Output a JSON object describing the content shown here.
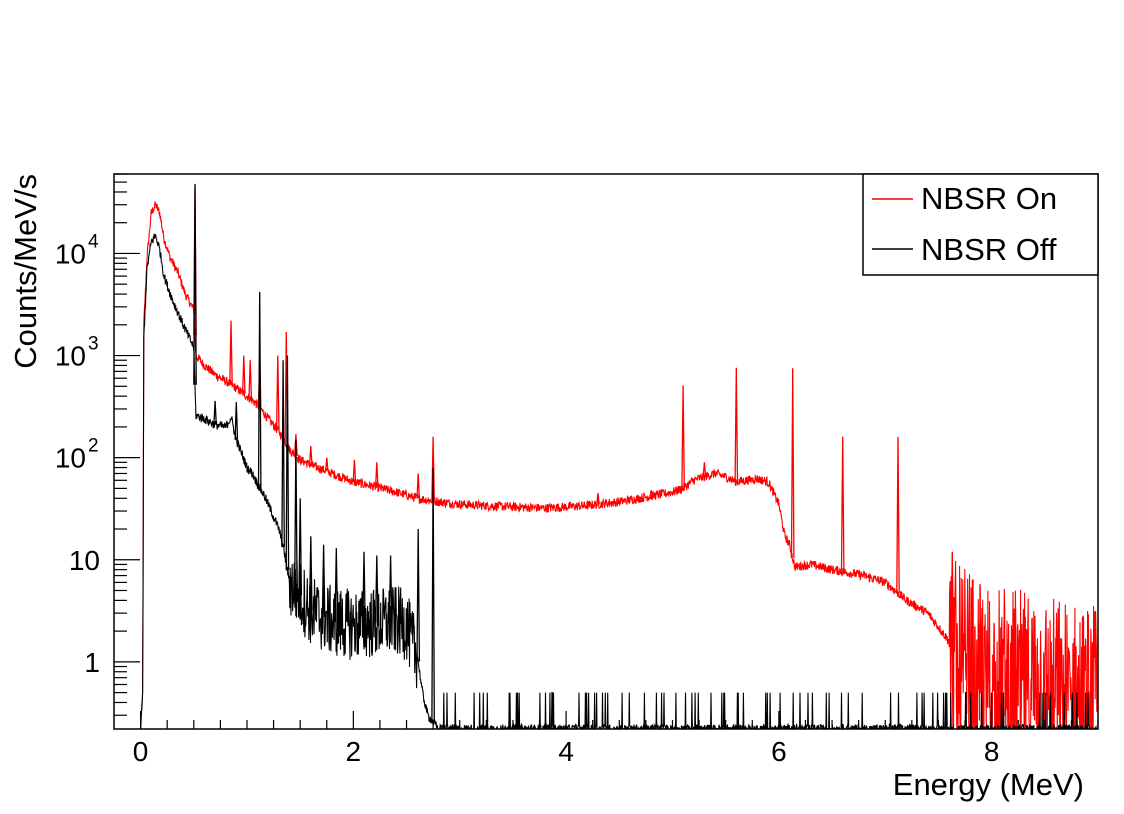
{
  "chart_data": {
    "type": "line",
    "title": "",
    "xlabel": "Energy (MeV)",
    "ylabel": "Counts/MeV/s",
    "xlim": [
      -0.25,
      9.0
    ],
    "ylim": [
      0.22,
      60000
    ],
    "y_scale": "log",
    "x_ticks": [
      0,
      2,
      4,
      6,
      8
    ],
    "x_tick_labels": [
      "0",
      "2",
      "4",
      "6",
      "8"
    ],
    "y_ticks": [
      {
        "value": 1,
        "base": "1",
        "exp": ""
      },
      {
        "value": 10,
        "base": "10",
        "exp": ""
      },
      {
        "value": 100,
        "base": "10",
        "exp": "2"
      },
      {
        "value": 1000,
        "base": "10",
        "exp": "3"
      },
      {
        "value": 10000,
        "base": "10",
        "exp": "4"
      }
    ],
    "grid": false,
    "legend_position": "top-right",
    "series": [
      {
        "name": "NBSR On",
        "color": "#ff0000",
        "continuum": [
          [
            0.0,
            0.22
          ],
          [
            0.02,
            0.5
          ],
          [
            0.03,
            2000
          ],
          [
            0.06,
            9000
          ],
          [
            0.1,
            25000
          ],
          [
            0.14,
            30000
          ],
          [
            0.18,
            25000
          ],
          [
            0.22,
            14000
          ],
          [
            0.28,
            9000
          ],
          [
            0.35,
            6500
          ],
          [
            0.42,
            4000
          ],
          [
            0.5,
            2800
          ],
          [
            0.52,
            1000
          ],
          [
            0.6,
            800
          ],
          [
            0.7,
            650
          ],
          [
            0.8,
            560
          ],
          [
            0.9,
            480
          ],
          [
            1.0,
            400
          ],
          [
            1.1,
            330
          ],
          [
            1.2,
            240
          ],
          [
            1.3,
            180
          ],
          [
            1.4,
            120
          ],
          [
            1.5,
            95
          ],
          [
            1.6,
            85
          ],
          [
            1.8,
            70
          ],
          [
            2.0,
            58
          ],
          [
            2.2,
            52
          ],
          [
            2.4,
            46
          ],
          [
            2.6,
            40
          ],
          [
            2.8,
            37
          ],
          [
            3.0,
            35
          ],
          [
            3.2,
            34
          ],
          [
            3.5,
            33
          ],
          [
            3.8,
            32
          ],
          [
            4.0,
            33
          ],
          [
            4.2,
            34
          ],
          [
            4.5,
            37
          ],
          [
            4.8,
            42
          ],
          [
            5.0,
            46
          ],
          [
            5.1,
            50
          ],
          [
            5.2,
            60
          ],
          [
            5.3,
            65
          ],
          [
            5.4,
            70
          ],
          [
            5.5,
            65
          ],
          [
            5.6,
            58
          ],
          [
            5.7,
            60
          ],
          [
            5.8,
            62
          ],
          [
            5.9,
            58
          ],
          [
            6.0,
            35
          ],
          [
            6.05,
            18
          ],
          [
            6.1,
            14
          ],
          [
            6.15,
            8.5
          ],
          [
            6.3,
            9
          ],
          [
            6.5,
            8
          ],
          [
            6.8,
            7
          ],
          [
            7.0,
            6
          ],
          [
            7.2,
            4
          ],
          [
            7.4,
            3
          ],
          [
            7.5,
            2.2
          ],
          [
            7.6,
            1.6
          ],
          [
            7.7,
            1.1
          ],
          [
            8.0,
            0.8
          ],
          [
            8.5,
            0.6
          ],
          [
            9.0,
            0.45
          ]
        ],
        "peaks": [
          [
            0.511,
            45000
          ],
          [
            0.85,
            2200
          ],
          [
            0.97,
            1000
          ],
          [
            1.03,
            900
          ],
          [
            1.12,
            1000
          ],
          [
            1.29,
            1000
          ],
          [
            1.37,
            1700
          ],
          [
            1.46,
            170
          ],
          [
            1.6,
            130
          ],
          [
            1.75,
            100
          ],
          [
            2.01,
            95
          ],
          [
            2.22,
            90
          ],
          [
            2.61,
            70
          ],
          [
            2.75,
            160
          ],
          [
            4.3,
            45
          ],
          [
            4.8,
            48
          ],
          [
            5.1,
            510
          ],
          [
            5.3,
            90
          ],
          [
            5.6,
            760
          ],
          [
            6.13,
            750
          ],
          [
            6.6,
            160
          ],
          [
            7.12,
            160
          ],
          [
            7.63,
            12
          ],
          [
            8.65,
            1.7
          ]
        ],
        "noise_from": 7.6,
        "noise_floor": 0.3,
        "noise_amp": 0.9
      },
      {
        "name": "NBSR Off",
        "color": "#000000",
        "continuum": [
          [
            0.0,
            0.22
          ],
          [
            0.02,
            0.5
          ],
          [
            0.03,
            1500
          ],
          [
            0.06,
            7000
          ],
          [
            0.1,
            13000
          ],
          [
            0.14,
            15000
          ],
          [
            0.18,
            11000
          ],
          [
            0.22,
            6000
          ],
          [
            0.3,
            3500
          ],
          [
            0.4,
            2000
          ],
          [
            0.5,
            1200
          ],
          [
            0.52,
            260
          ],
          [
            0.6,
            240
          ],
          [
            0.7,
            210
          ],
          [
            0.8,
            200
          ],
          [
            0.85,
            250
          ],
          [
            0.9,
            150
          ],
          [
            0.95,
            110
          ],
          [
            1.0,
            80
          ],
          [
            1.05,
            70
          ],
          [
            1.1,
            55
          ],
          [
            1.15,
            45
          ],
          [
            1.2,
            35
          ],
          [
            1.3,
            20
          ],
          [
            1.35,
            12
          ],
          [
            1.4,
            6
          ],
          [
            1.5,
            4.5
          ],
          [
            1.6,
            3.2
          ],
          [
            1.7,
            2.8
          ],
          [
            1.8,
            2.5
          ],
          [
            2.0,
            2.3
          ],
          [
            2.2,
            2.4
          ],
          [
            2.4,
            2.5
          ],
          [
            2.5,
            2.3
          ],
          [
            2.55,
            1.5
          ],
          [
            2.6,
            1.2
          ],
          [
            2.65,
            0.5
          ],
          [
            2.7,
            0.3
          ],
          [
            2.8,
            0.22
          ],
          [
            9.0,
            0.22
          ]
        ],
        "peaks": [
          [
            0.511,
            48000
          ],
          [
            0.7,
            360
          ],
          [
            0.9,
            350
          ],
          [
            1.12,
            4200
          ],
          [
            1.34,
            900
          ],
          [
            1.38,
            1000
          ],
          [
            1.46,
            150
          ],
          [
            1.5,
            40
          ],
          [
            1.6,
            17
          ],
          [
            1.72,
            14
          ],
          [
            1.84,
            13
          ],
          [
            2.1,
            12
          ],
          [
            2.22,
            11
          ],
          [
            2.35,
            11
          ],
          [
            2.61,
            20
          ],
          [
            2.75,
            80
          ]
        ],
        "noise_from": 1.4,
        "noise_to": 2.6,
        "noise_amp": 0.35
      }
    ]
  }
}
